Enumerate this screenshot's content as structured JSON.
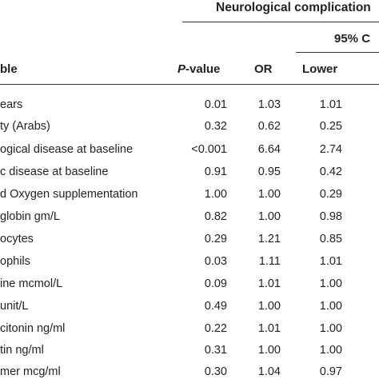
{
  "table": {
    "group_header": "Neurological complication",
    "ci_header": "95% C",
    "columns": {
      "variable": "ble",
      "p_value_italic": "P",
      "p_value_rest": "-value",
      "or": "OR",
      "lower": "Lower"
    },
    "rows": [
      {
        "variable": "ears",
        "p": "0.01",
        "or": "1.03",
        "lower": "1.01"
      },
      {
        "variable": "ty (Arabs)",
        "p": "0.32",
        "or": "0.62",
        "lower": "0.25"
      },
      {
        "variable": "ogical disease at baseline",
        "p": "<0.001",
        "or": "6.64",
        "lower": "2.74"
      },
      {
        "variable": "c disease at baseline",
        "p": "0.91",
        "or": "0.95",
        "lower": "0.42"
      },
      {
        "variable": "d Oxygen supplementation",
        "p": "1.00",
        "or": "1.00",
        "lower": "0.29"
      },
      {
        "variable": "globin gm/L",
        "p": "0.82",
        "or": "1.00",
        "lower": "0.98"
      },
      {
        "variable": "ocytes",
        "p": "0.29",
        "or": "1.21",
        "lower": "0.85"
      },
      {
        "variable": "ophils",
        "p": "0.03",
        "or": "1.11",
        "lower": "1.01"
      },
      {
        "variable": "ine mcmol/L",
        "p": "0.09",
        "or": "1.01",
        "lower": "1.00"
      },
      {
        "variable": "unit/L",
        "p": "0.49",
        "or": "1.00",
        "lower": "1.00"
      },
      {
        "variable": "citonin ng/ml",
        "p": "0.22",
        "or": "1.01",
        "lower": "1.00"
      },
      {
        "variable": "tin ng/ml",
        "p": "0.31",
        "or": "1.00",
        "lower": "1.00"
      },
      {
        "variable": "mer mcg/ml",
        "p": "0.30",
        "or": "1.04",
        "lower": "0.97"
      }
    ]
  }
}
